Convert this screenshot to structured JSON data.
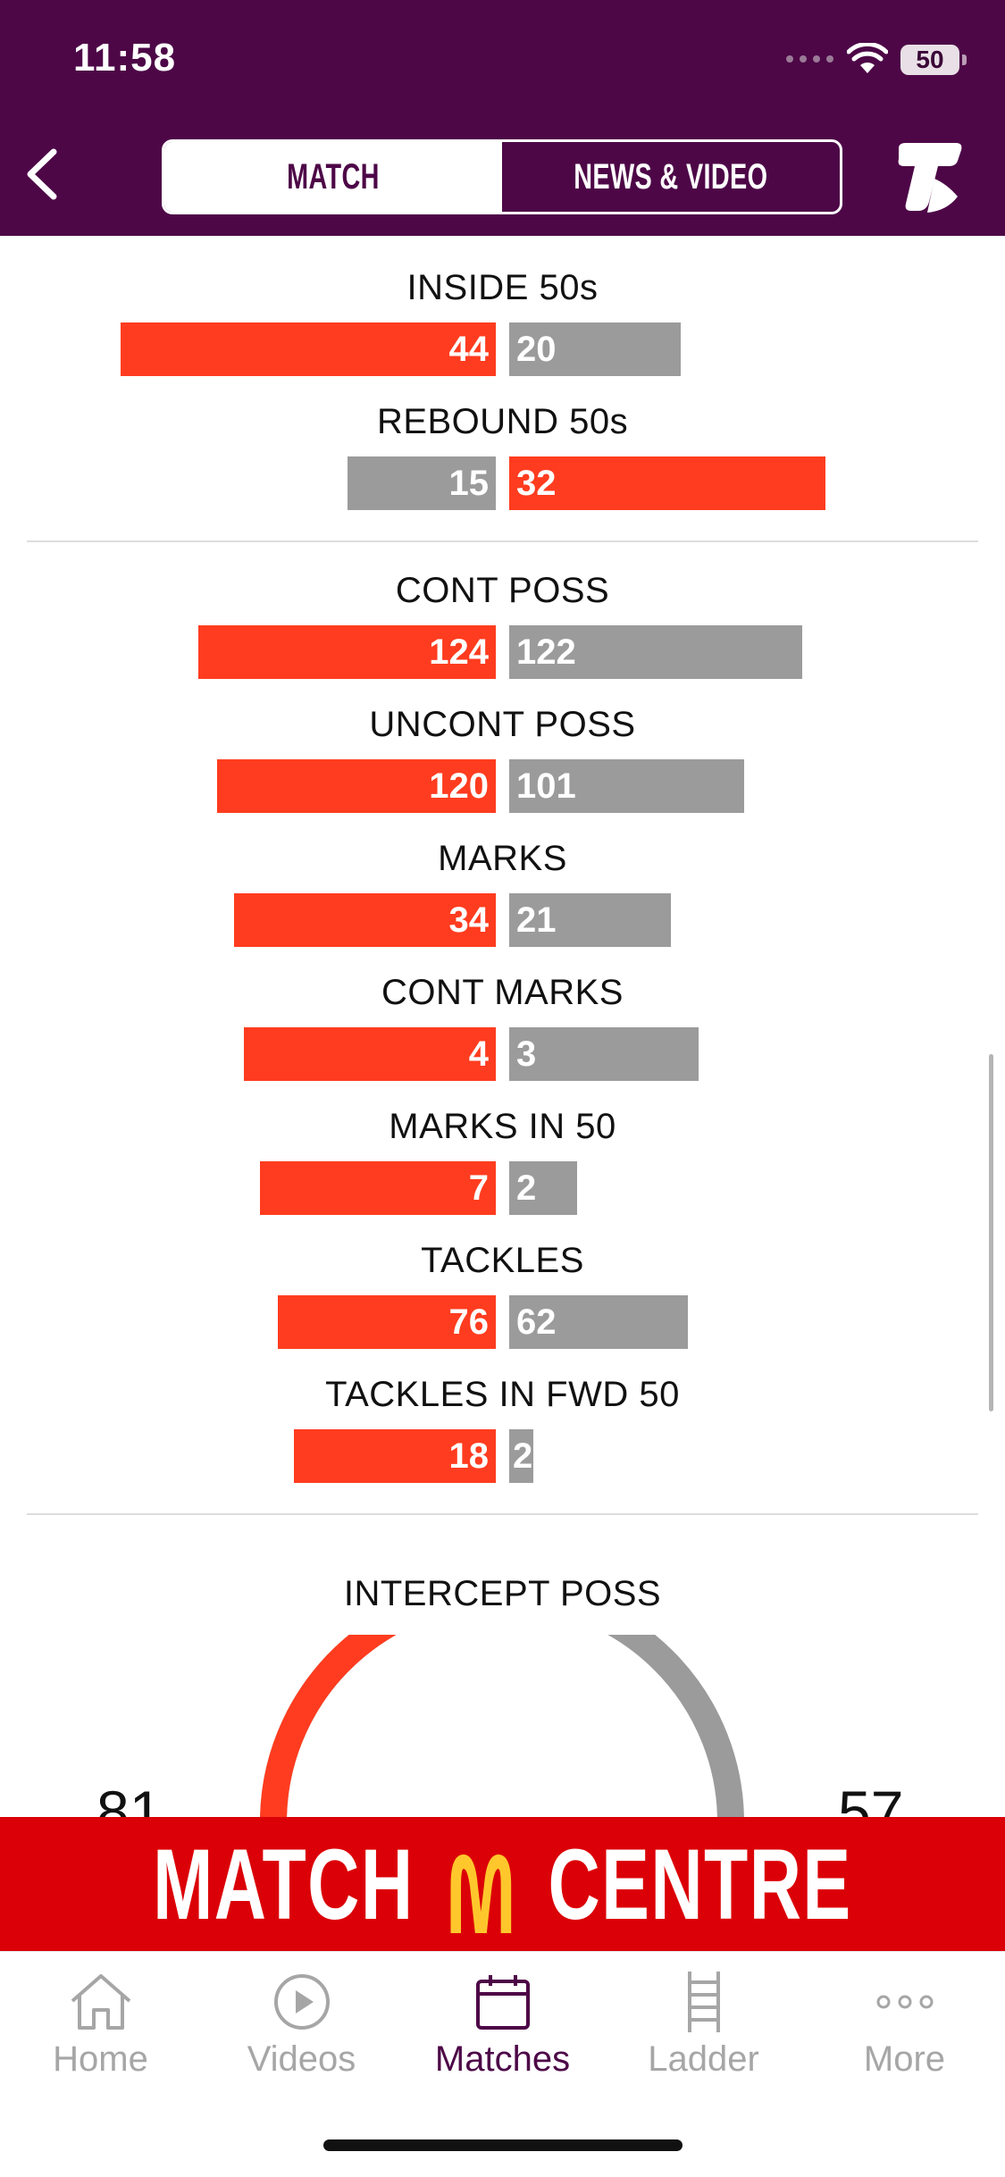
{
  "status_bar": {
    "time": "11:58",
    "battery": "50"
  },
  "header": {
    "tabs": [
      {
        "label": "MATCH",
        "active": true
      },
      {
        "label": "NEWS & VIDEO",
        "active": false
      }
    ],
    "back_icon": "chevron-left-icon",
    "brand_icon": "telstra-logo-icon"
  },
  "colors": {
    "header": "#4d0747",
    "home_team": "#ff3c1f",
    "away_team": "#9b9b9b",
    "banner": "#db0007",
    "active_tab": "#4d0747"
  },
  "stats": [
    {
      "label": "INSIDE 50s",
      "home": "44",
      "away": "20",
      "leader": "home"
    },
    {
      "label": "REBOUND 50s",
      "home": "15",
      "away": "32",
      "leader": "away"
    },
    {
      "label": "CONT POSS",
      "home": "124",
      "away": "122",
      "leader": "home"
    },
    {
      "label": "UNCONT POSS",
      "home": "120",
      "away": "101",
      "leader": "home"
    },
    {
      "label": "MARKS",
      "home": "34",
      "away": "21",
      "leader": "home"
    },
    {
      "label": "CONT MARKS",
      "home": "4",
      "away": "3",
      "leader": "home"
    },
    {
      "label": "MARKS IN 50",
      "home": "7",
      "away": "2",
      "leader": "home"
    },
    {
      "label": "TACKLES",
      "home": "76",
      "away": "62",
      "leader": "home"
    },
    {
      "label": "TACKLES IN FWD 50",
      "home": "18",
      "away": "2",
      "leader": "home"
    }
  ],
  "intercept": {
    "title": "INTERCEPT POSS",
    "home": "81",
    "away": "57"
  },
  "banner": {
    "left": "MATCH",
    "right": "CENTRE",
    "logo_icon": "mcdonalds-arches-icon"
  },
  "tab_bar": [
    {
      "label": "Home",
      "icon": "home-icon",
      "active": false
    },
    {
      "label": "Videos",
      "icon": "play-circle-icon",
      "active": false
    },
    {
      "label": "Matches",
      "icon": "calendar-icon",
      "active": true
    },
    {
      "label": "Ladder",
      "icon": "ladder-icon",
      "active": false
    },
    {
      "label": "More",
      "icon": "more-dots-icon",
      "active": false
    }
  ]
}
